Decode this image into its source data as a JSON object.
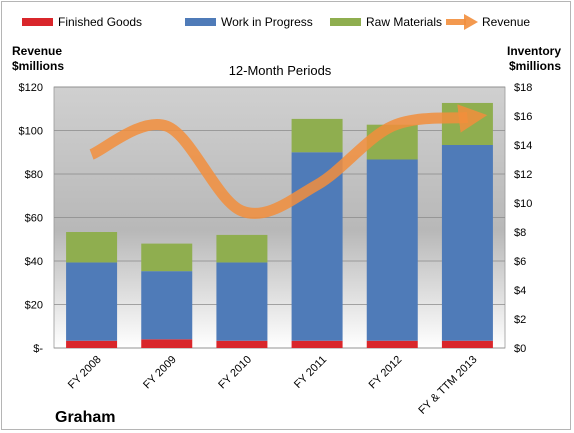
{
  "chart_data": {
    "type": "bar",
    "subtitle": "12-Month Periods",
    "company": "Graham",
    "categories": [
      "FY 2008",
      "FY 2009",
      "FY 2010",
      "FY 2011",
      "FY 2012",
      "FY & TTM 2013"
    ],
    "left_axis": {
      "label_line1": "Revenue",
      "label_line2": "$millions",
      "min": 0,
      "max": 120,
      "step": 20,
      "ticks": [
        "$-",
        "$20",
        "$40",
        "$60",
        "$80",
        "$100",
        "$120"
      ]
    },
    "right_axis": {
      "label_line1": "Inventory",
      "label_line2": "$millions",
      "min": 0,
      "max": 18,
      "step": 2,
      "ticks": [
        "$0",
        "$2",
        "$4",
        "$6",
        "$8",
        "$10",
        "$12",
        "$14",
        "$16",
        "$18"
      ]
    },
    "series": [
      {
        "name": "Finished Goods",
        "type": "bar",
        "axis": "right",
        "color": "#d9262b",
        "values": [
          0.5,
          0.6,
          0.5,
          0.5,
          0.5,
          0.5
        ]
      },
      {
        "name": "Work in Progress",
        "type": "bar",
        "axis": "right",
        "color": "#4f7bb8",
        "values": [
          5.4,
          4.7,
          5.4,
          13.0,
          12.5,
          13.5
        ]
      },
      {
        "name": "Raw Materials",
        "type": "bar",
        "axis": "right",
        "color": "#8fae4f",
        "values": [
          2.1,
          1.9,
          1.9,
          2.3,
          2.4,
          2.9
        ]
      },
      {
        "name": "Revenue",
        "type": "line",
        "axis": "left",
        "color": "#f28e3c",
        "values": [
          89,
          102,
          63,
          75,
          102,
          106
        ]
      }
    ],
    "grid": true,
    "legend": "top"
  }
}
